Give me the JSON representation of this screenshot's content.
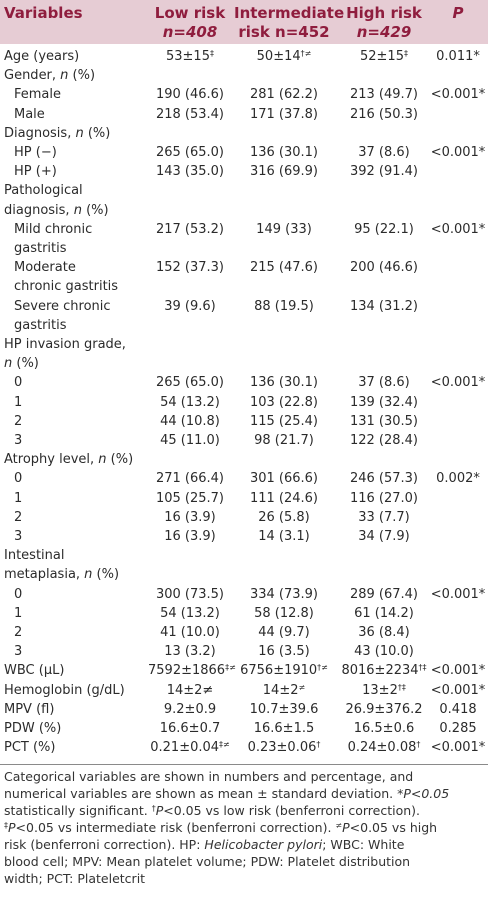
{
  "header": {
    "variables": "Variables",
    "low_risk": "Low risk",
    "low_n": "n=408",
    "intermediate_risk": "Intermediate",
    "intermediate_n": "risk n=452",
    "high_risk": "High risk",
    "high_n": "n=429",
    "p": "P"
  },
  "rows": [
    {
      "label": "Age (years)",
      "low": "53±15",
      "low_sup": "‡",
      "mid": "50±14",
      "mid_sup": "†≠",
      "high": "52±15",
      "high_sup": "‡",
      "p": "0.011*"
    },
    {
      "label": "Gender, n (%)"
    },
    {
      "label": "Female",
      "indent": true,
      "low": "190 (46.6)",
      "mid": "281 (62.2)",
      "high": "213 (49.7)",
      "p": "<0.001*"
    },
    {
      "label": "Male",
      "indent": true,
      "low": "218 (53.4)",
      "mid": "171 (37.8)",
      "high": "216 (50.3)"
    },
    {
      "label": "Diagnosis, n (%)"
    },
    {
      "label": "HP (−)",
      "indent": true,
      "low": "265 (65.0)",
      "mid": "136 (30.1)",
      "high": "37 (8.6)",
      "p": "<0.001*"
    },
    {
      "label": "HP (+)",
      "indent": true,
      "low": "143 (35.0)",
      "mid": "316 (69.9)",
      "high": "392 (91.4)"
    },
    {
      "label": "Pathological"
    },
    {
      "label": "diagnosis, n (%)"
    },
    {
      "label": "Mild chronic",
      "indent": true,
      "low": "217 (53.2)",
      "mid": "149 (33)",
      "high": "95 (22.1)",
      "p": "<0.001*"
    },
    {
      "label": "gastritis",
      "indent": true
    },
    {
      "label": "Moderate",
      "indent": true,
      "low": "152 (37.3)",
      "mid": "215 (47.6)",
      "high": "200 (46.6)"
    },
    {
      "label": "chronic gastritis",
      "indent": true
    },
    {
      "label": "Severe chronic",
      "indent": true,
      "low": "39 (9.6)",
      "mid": "88 (19.5)",
      "high": "134 (31.2)"
    },
    {
      "label": "gastritis",
      "indent": true
    },
    {
      "label": "HP invasion grade,"
    },
    {
      "label": "n (%)"
    },
    {
      "label": "0",
      "indent": true,
      "low": "265 (65.0)",
      "mid": "136 (30.1)",
      "high": "37 (8.6)",
      "p": "<0.001*"
    },
    {
      "label": "1",
      "indent": true,
      "low": "54 (13.2)",
      "mid": "103 (22.8)",
      "high": "139 (32.4)"
    },
    {
      "label": "2",
      "indent": true,
      "low": "44 (10.8)",
      "mid": "115 (25.4)",
      "high": "131 (30.5)"
    },
    {
      "label": "3",
      "indent": true,
      "low": "45 (11.0)",
      "mid": "98 (21.7)",
      "high": "122 (28.4)"
    },
    {
      "label": "Atrophy level, n (%)"
    },
    {
      "label": "0",
      "indent": true,
      "low": "271 (66.4)",
      "mid": "301 (66.6)",
      "high": "246 (57.3)",
      "p": "0.002*"
    },
    {
      "label": "1",
      "indent": true,
      "low": "105 (25.7)",
      "mid": "111 (24.6)",
      "high": "116 (27.0)"
    },
    {
      "label": "2",
      "indent": true,
      "low": "16 (3.9)",
      "mid": "26 (5.8)",
      "high": "33 (7.7)"
    },
    {
      "label": "3",
      "indent": true,
      "low": "16 (3.9)",
      "mid": "14 (3.1)",
      "high": "34 (7.9)"
    },
    {
      "label": "Intestinal"
    },
    {
      "label": "metaplasia, n (%)"
    },
    {
      "label": "0",
      "indent": true,
      "low": "300 (73.5)",
      "mid": "334 (73.9)",
      "high": "289 (67.4)",
      "p": "<0.001*"
    },
    {
      "label": "1",
      "indent": true,
      "low": "54 (13.2)",
      "mid": "58 (12.8)",
      "high": "61 (14.2)"
    },
    {
      "label": "2",
      "indent": true,
      "low": "41 (10.0)",
      "mid": "44 (9.7)",
      "high": "36 (8.4)"
    },
    {
      "label": "3",
      "indent": true,
      "low": "13 (3.2)",
      "mid": "16 (3.5)",
      "high": "43 (10.0)"
    },
    {
      "label": "WBC (μL)",
      "low": "7592±1866",
      "low_sup": "‡≠",
      "mid": "6756±1910",
      "mid_sup": "†≠",
      "high": "8016±2234",
      "high_sup": "†‡",
      "p": "<0.001*"
    },
    {
      "label": "Hemoglobin (g/dL)",
      "low": "14±2≠",
      "mid": "14±2",
      "mid_sup": "≠",
      "high": "13±2",
      "high_sup": "†‡",
      "p": "<0.001*"
    },
    {
      "label": "MPV (fl)",
      "low": "9.2±0.9",
      "mid": "10.7±39.6",
      "high": "26.9±376.2",
      "p": "0.418"
    },
    {
      "label": "PDW (%)",
      "low": "16.6±0.7",
      "mid": "16.6±1.5",
      "high": "16.5±0.6",
      "p": "0.285"
    },
    {
      "label": "PCT (%)",
      "low": "0.21±0.04",
      "low_sup": "‡≠",
      "mid": "0.23±0.06",
      "mid_sup": "†",
      "high": "0.24±0.08",
      "high_sup": "†",
      "p": "<0.001*"
    }
  ],
  "footnote": {
    "line1": "Categorical variables are shown in numbers and percentage, and",
    "line2a": "numerical variables are shown as mean ± standard deviation. *",
    "line2b": "P<0.05",
    "line3a": "statistically significant. ",
    "line3b": "†",
    "line3c": "P",
    "line3d": "<0.05 vs low risk (benferroni correction).",
    "line4a": "‡",
    "line4b": "P",
    "line4c": "<0.05 vs intermediate risk (benferroni correction). ",
    "line4d": "≠",
    "line4e": "P",
    "line4f": "<0.05 vs high",
    "line5a": "risk (benferroni correction). HP: ",
    "line5b": "Helicobacter pylori",
    "line5c": "; WBC: White",
    "line6": "blood cell; MPV: Mean platelet volume; PDW: Platelet distribution",
    "line7": "width; PCT: Plateletcrit"
  }
}
